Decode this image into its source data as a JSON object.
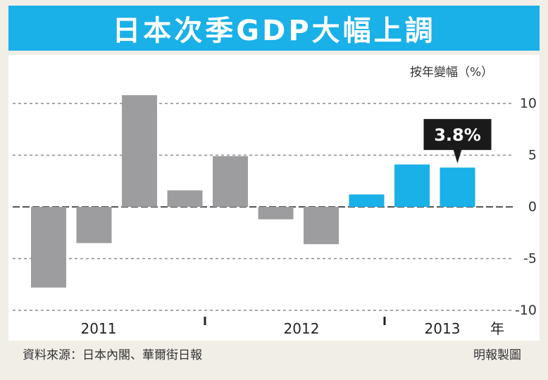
{
  "title": "日本次季GDP大幅上調",
  "colors": {
    "title_bg": "#1ab0e8",
    "past": "#9d9d9f",
    "highlight": "#1ab0e8",
    "callout_bg": "#1a1a1a"
  },
  "chart_data": {
    "type": "bar",
    "unit_label": "按年變幅（%）",
    "ylim": [
      -10,
      10
    ],
    "yticks": [
      10,
      5,
      0,
      -5,
      -10
    ],
    "ytick_labels": [
      "10",
      "5",
      "0",
      "-5",
      "-10"
    ],
    "year_labels": [
      "2011",
      "2012",
      "2013"
    ],
    "x_unit": "年",
    "values": [
      -7.8,
      -3.5,
      10.8,
      1.6,
      4.9,
      -1.2,
      -3.6,
      1.2,
      4.1,
      3.8
    ],
    "highlight_from_index": 7,
    "callout": {
      "index": 9,
      "text": "3.8%"
    },
    "grid": true
  },
  "footer": {
    "source": "資料來源：日本內閣、華爾街日報",
    "credit": "明報製圖"
  }
}
